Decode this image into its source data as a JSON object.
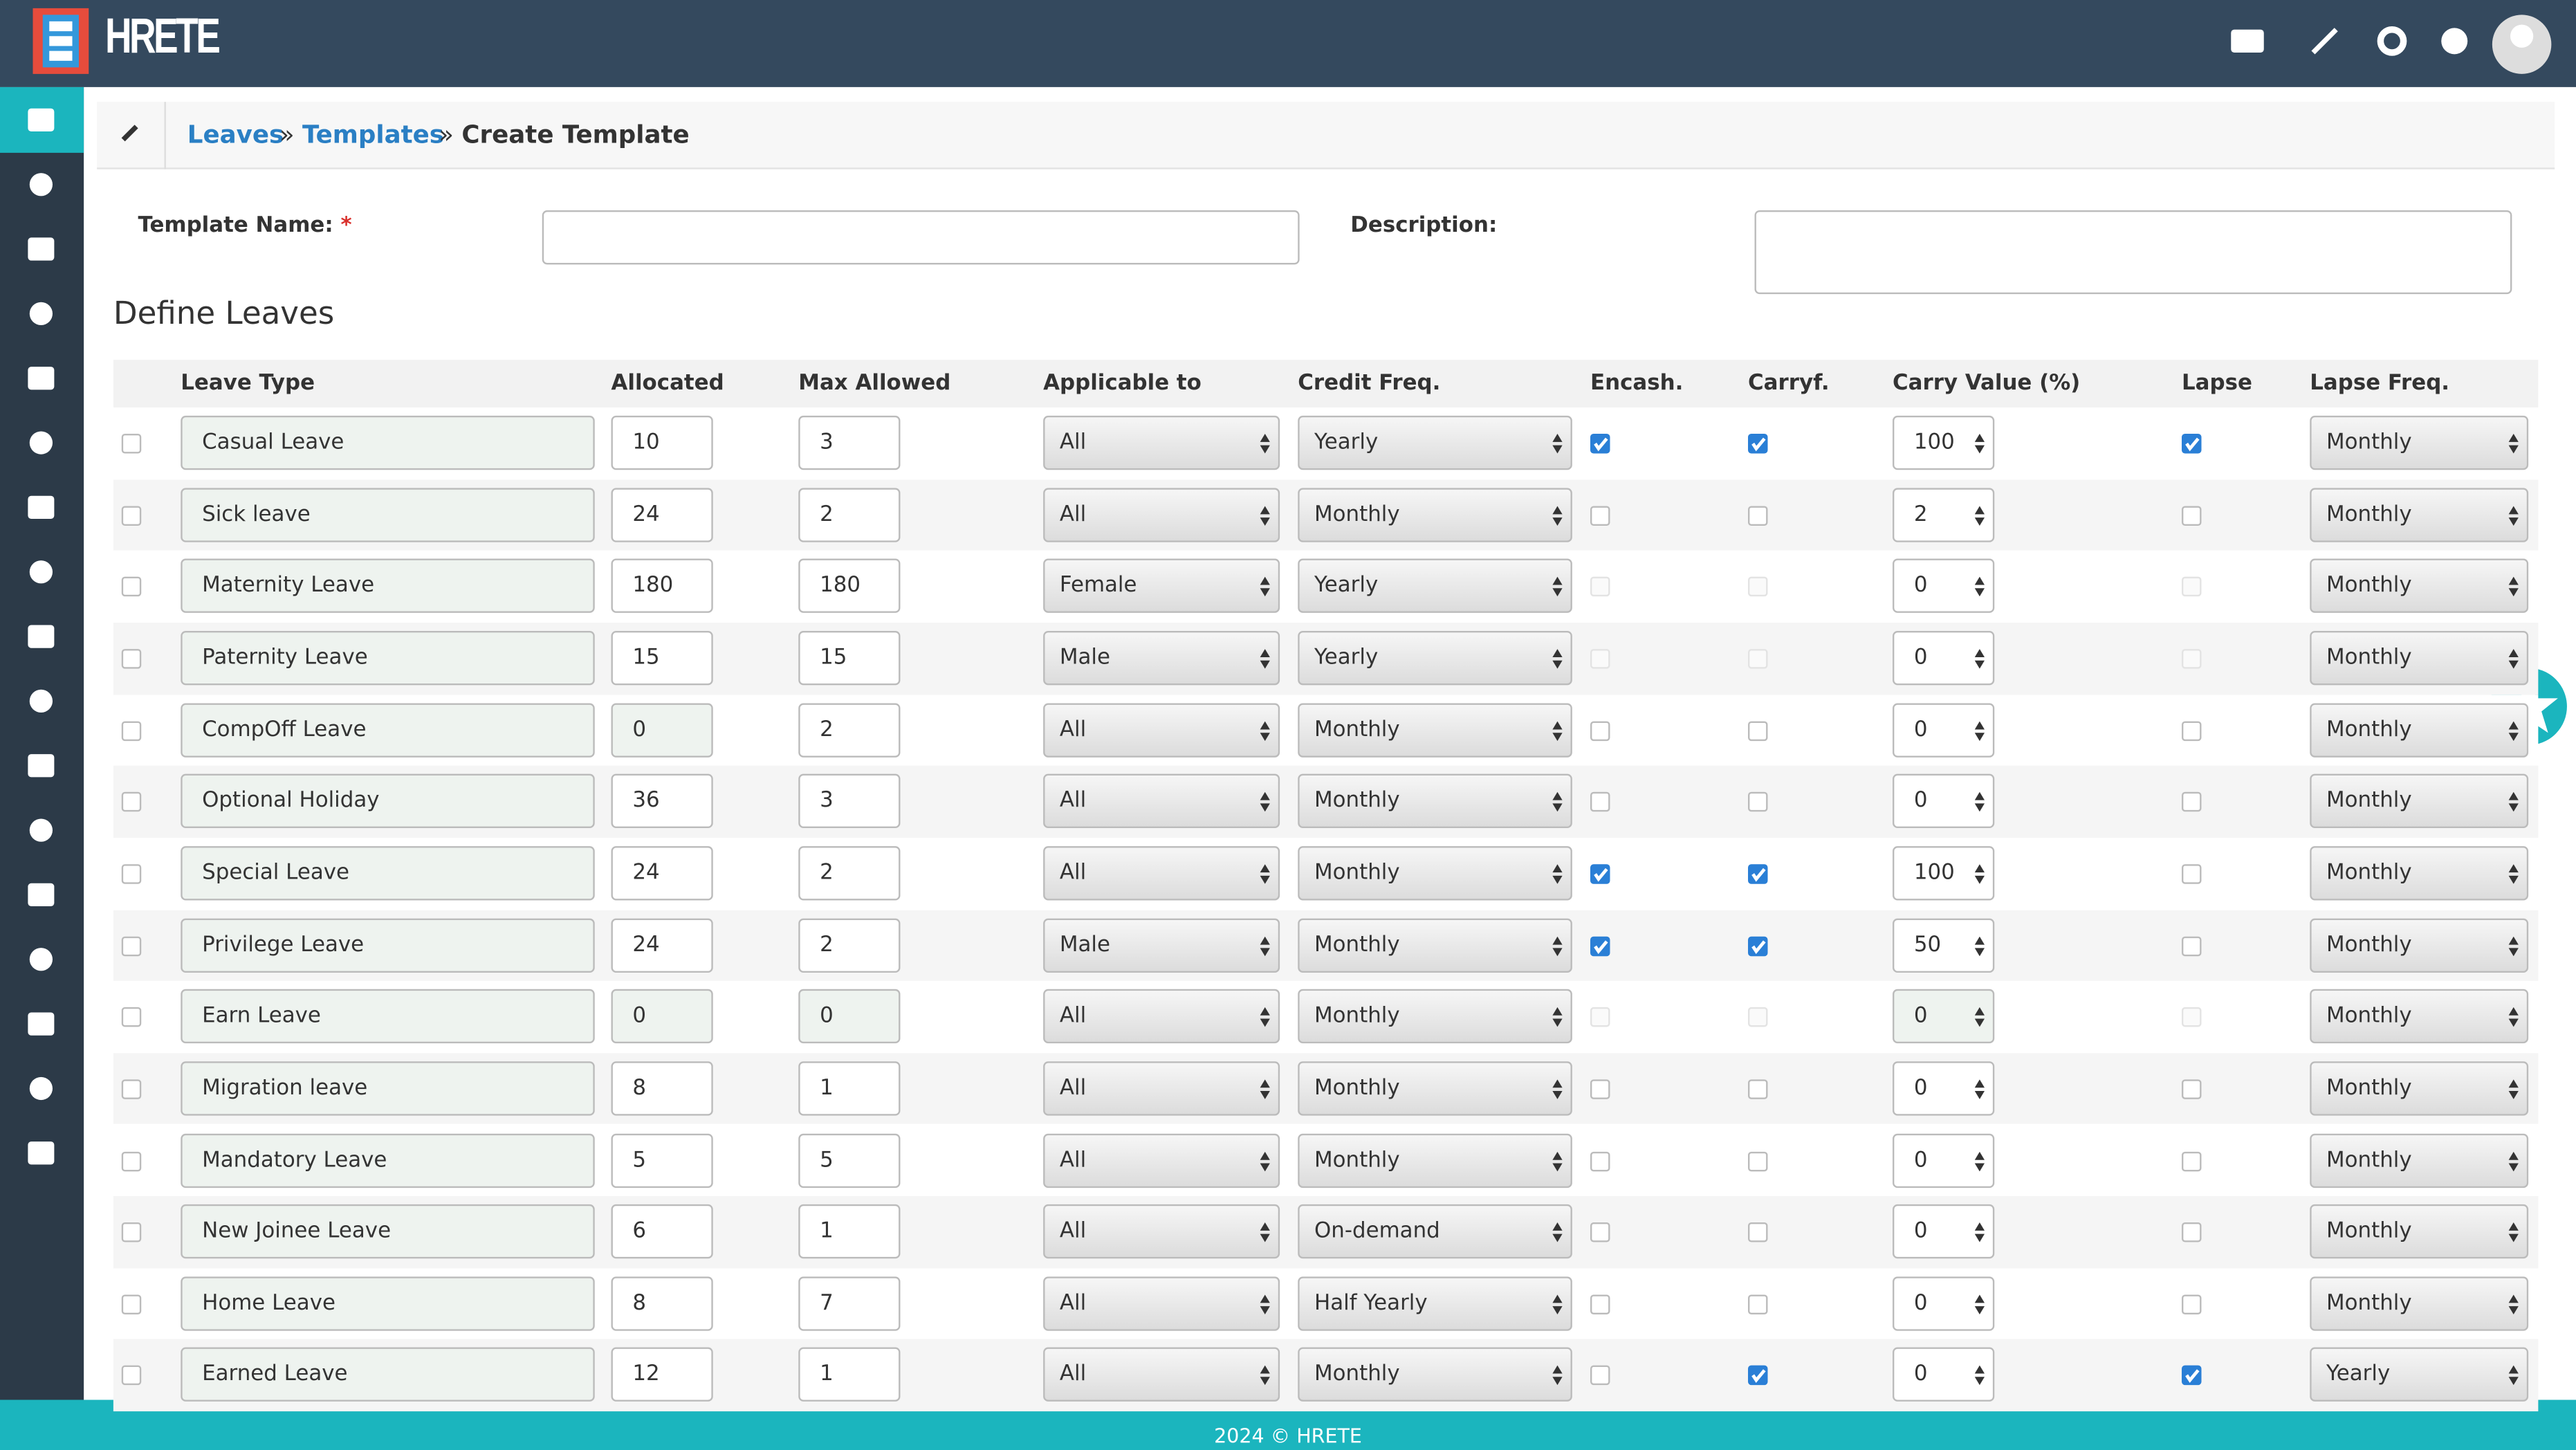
{
  "brand": "HRETE",
  "breadcrumb": [
    "Leaves",
    "Templates",
    "Create Template"
  ],
  "form": {
    "template_name_label": "Template Name:",
    "required_mark": "*",
    "description_label": "Description:"
  },
  "section_title": "Define Leaves",
  "table": {
    "columns": [
      "Leave Type",
      "Allocated",
      "Max Allowed",
      "Applicable to",
      "Credit Freq.",
      "Encash.",
      "Carryf.",
      "Carry Value (%)",
      "Lapse",
      "Lapse Freq."
    ],
    "rows": [
      {
        "leave_type": "Casual Leave",
        "allocated": 10,
        "max_allowed": 3,
        "applicable_to": "All",
        "credit_freq": "Yearly",
        "encash": true,
        "carryf": true,
        "carry_value": 100,
        "lapse": true,
        "lapse_freq": "Monthly",
        "disabled": []
      },
      {
        "leave_type": "Sick leave",
        "allocated": 24,
        "max_allowed": 2,
        "applicable_to": "All",
        "credit_freq": "Monthly",
        "encash": false,
        "carryf": false,
        "carry_value": 2,
        "lapse": false,
        "lapse_freq": "Monthly",
        "disabled": []
      },
      {
        "leave_type": "Maternity Leave",
        "allocated": 180,
        "max_allowed": 180,
        "applicable_to": "Female",
        "credit_freq": "Yearly",
        "encash": false,
        "carryf": false,
        "carry_value": 0,
        "lapse": false,
        "lapse_freq": "Monthly",
        "disabled": [
          "encash",
          "carryf",
          "lapse"
        ]
      },
      {
        "leave_type": "Paternity Leave",
        "allocated": 15,
        "max_allowed": 15,
        "applicable_to": "Male",
        "credit_freq": "Yearly",
        "encash": false,
        "carryf": false,
        "carry_value": 0,
        "lapse": false,
        "lapse_freq": "Monthly",
        "disabled": [
          "encash",
          "carryf",
          "lapse"
        ]
      },
      {
        "leave_type": "CompOff Leave",
        "allocated": 0,
        "max_allowed": 2,
        "applicable_to": "All",
        "credit_freq": "Monthly",
        "encash": false,
        "carryf": false,
        "carry_value": 0,
        "lapse": false,
        "lapse_freq": "Monthly",
        "disabled": [
          "allocated"
        ]
      },
      {
        "leave_type": "Optional Holiday",
        "allocated": 36,
        "max_allowed": 3,
        "applicable_to": "All",
        "credit_freq": "Monthly",
        "encash": false,
        "carryf": false,
        "carry_value": 0,
        "lapse": false,
        "lapse_freq": "Monthly",
        "disabled": []
      },
      {
        "leave_type": "Special Leave",
        "allocated": 24,
        "max_allowed": 2,
        "applicable_to": "All",
        "credit_freq": "Monthly",
        "encash": true,
        "carryf": true,
        "carry_value": 100,
        "lapse": false,
        "lapse_freq": "Monthly",
        "disabled": []
      },
      {
        "leave_type": "Privilege Leave",
        "allocated": 24,
        "max_allowed": 2,
        "applicable_to": "Male",
        "credit_freq": "Monthly",
        "encash": true,
        "carryf": true,
        "carry_value": 50,
        "lapse": false,
        "lapse_freq": "Monthly",
        "disabled": []
      },
      {
        "leave_type": "Earn Leave",
        "allocated": 0,
        "max_allowed": 0,
        "applicable_to": "All",
        "credit_freq": "Monthly",
        "encash": false,
        "carryf": false,
        "carry_value": 0,
        "lapse": false,
        "lapse_freq": "Monthly",
        "disabled": [
          "allocated",
          "max_allowed",
          "encash",
          "carryf",
          "carry_value",
          "lapse"
        ]
      },
      {
        "leave_type": "Migration leave",
        "allocated": 8,
        "max_allowed": 1,
        "applicable_to": "All",
        "credit_freq": "Monthly",
        "encash": false,
        "carryf": false,
        "carry_value": 0,
        "lapse": false,
        "lapse_freq": "Monthly",
        "disabled": []
      },
      {
        "leave_type": "Mandatory Leave",
        "allocated": 5,
        "max_allowed": 5,
        "applicable_to": "All",
        "credit_freq": "Monthly",
        "encash": false,
        "carryf": false,
        "carry_value": 0,
        "lapse": false,
        "lapse_freq": "Monthly",
        "disabled": []
      },
      {
        "leave_type": "New Joinee Leave",
        "allocated": 6,
        "max_allowed": 1,
        "applicable_to": "All",
        "credit_freq": "On-demand",
        "encash": false,
        "carryf": false,
        "carry_value": 0,
        "lapse": false,
        "lapse_freq": "Monthly",
        "disabled": []
      },
      {
        "leave_type": "Home Leave",
        "allocated": 8,
        "max_allowed": 7,
        "applicable_to": "All",
        "credit_freq": "Half Yearly",
        "encash": false,
        "carryf": false,
        "carry_value": 0,
        "lapse": false,
        "lapse_freq": "Monthly",
        "disabled": []
      },
      {
        "leave_type": "Earned Leave",
        "allocated": 12,
        "max_allowed": 1,
        "applicable_to": "All",
        "credit_freq": "Monthly",
        "encash": false,
        "carryf": true,
        "carry_value": 0,
        "lapse": true,
        "lapse_freq": "Yearly",
        "disabled": []
      }
    ]
  },
  "footer": "2024 © HRETE"
}
